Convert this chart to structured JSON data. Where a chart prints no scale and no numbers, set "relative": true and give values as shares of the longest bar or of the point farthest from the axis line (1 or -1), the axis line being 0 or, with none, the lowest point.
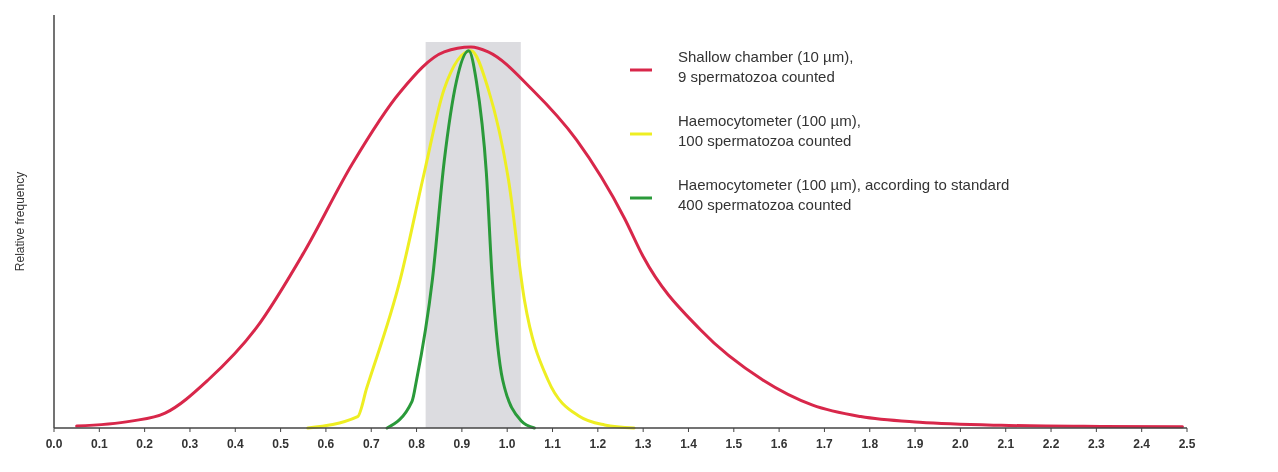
{
  "chart_data": {
    "type": "line",
    "relative": true,
    "ylabel": "Relative frequency",
    "legend": "top right",
    "xlim": [
      0,
      2.5
    ],
    "xticks": [
      {
        "value": 0,
        "label": "0.0"
      },
      0.1,
      0.2,
      0.3,
      0.4,
      0.5,
      0.6,
      0.7,
      0.8,
      0.9,
      {
        "value": 1,
        "label": "1.0"
      },
      1.1,
      1.2,
      1.3,
      1.4,
      1.5,
      1.6,
      1.7,
      1.8,
      1.9,
      {
        "value": 2,
        "label": "2.0"
      },
      2.1,
      2.2,
      2.3,
      2.4,
      2.5
    ],
    "bands": [
      {
        "axis": "x",
        "from": 0.82,
        "to": 1.03,
        "color": "#dcdce0"
      }
    ],
    "series": [
      {
        "name": "Shallow chamber (10 µm),\n9 spermatozoa counted",
        "color": "#d8274a",
        "x": [
          0.05,
          0.17,
          0.245,
          0.34,
          0.446,
          0.552,
          0.658,
          0.764,
          0.861,
          0.92,
          0.958,
          1.056,
          1.153,
          1.259,
          1.3,
          1.427,
          1.564,
          1.674,
          1.78,
          1.91,
          2.09,
          2.31,
          2.49
        ],
        "values": [
          0.005,
          0.018,
          0.039,
          0.126,
          0.262,
          0.462,
          0.693,
          0.882,
          0.987,
          1,
          0.987,
          0.887,
          0.756,
          0.55,
          0.45,
          0.257,
          0.126,
          0.06,
          0.03,
          0.015,
          0.007,
          0.004,
          0.003
        ]
      },
      {
        "name": "Haemocytometer (100 µm),\n100 spermatozoa counted",
        "color": "#eeee22",
        "x": [
          0.56,
          0.67,
          0.69,
          0.764,
          0.817,
          0.861,
          0.92,
          0.958,
          1.003,
          1.038,
          1.09,
          1.16,
          1.215,
          1.28
        ],
        "values": [
          0,
          0.03,
          0.105,
          0.39,
          0.67,
          0.89,
          0.99,
          0.89,
          0.65,
          0.336,
          0.126,
          0.03,
          0.008,
          0
        ]
      },
      {
        "name": "Haemocytometer (100 µm), according to standard\n400 spermatozoa counted",
        "color": "#2a9a3a",
        "x": [
          0.735,
          0.79,
          0.8,
          0.835,
          0.861,
          0.888,
          0.915,
          0.932,
          0.954,
          0.967,
          0.99,
          1.03,
          1.06
        ],
        "values": [
          0,
          0.07,
          0.126,
          0.39,
          0.7,
          0.91,
          0.99,
          0.91,
          0.67,
          0.39,
          0.126,
          0.02,
          0
        ]
      }
    ]
  }
}
